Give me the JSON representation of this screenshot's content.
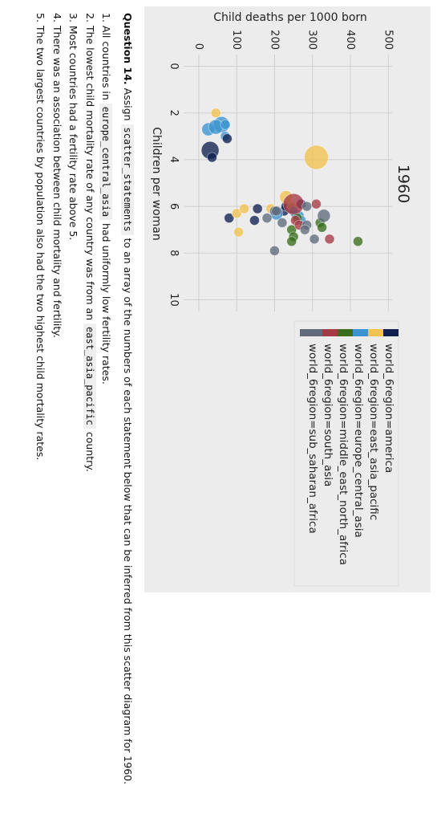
{
  "chart_data": {
    "type": "scatter",
    "title": "1960",
    "xlabel": "Children per woman",
    "ylabel": "Child deaths per 1000 born",
    "xlim": [
      -0.5,
      10.5
    ],
    "ylim": [
      -40,
      510
    ],
    "xticks": [
      0,
      2,
      4,
      6,
      8,
      10
    ],
    "yticks": [
      0,
      100,
      200,
      300,
      400,
      500
    ],
    "grid": true,
    "legend_position": "right",
    "series": [
      {
        "name": "world_6region=america",
        "color": "#0f2050",
        "points": [
          [
            6.1,
            155
          ],
          [
            6.5,
            80
          ],
          [
            6.6,
            147
          ],
          [
            6.2,
            225
          ],
          [
            6.0,
            230
          ],
          [
            6.3,
            255
          ],
          [
            6.1,
            245
          ],
          [
            5.9,
            270
          ]
        ]
      },
      {
        "name": "world_6region=east_asia_pacific",
        "color": "#f2c14e",
        "points": [
          [
            2.0,
            45
          ],
          [
            3.9,
            310
          ],
          [
            6.3,
            100
          ],
          [
            7.1,
            105
          ],
          [
            6.1,
            190
          ],
          [
            6.1,
            120
          ],
          [
            5.6,
            230
          ],
          [
            6.0,
            245
          ]
        ]
      },
      {
        "name": "world_6region=europe_central_asia",
        "color": "#3b94cf",
        "points": [
          [
            2.5,
            60
          ],
          [
            2.7,
            25
          ],
          [
            2.6,
            45
          ],
          [
            3.0,
            70
          ],
          [
            2.5,
            70
          ],
          [
            6.3,
            205
          ],
          [
            6.4,
            265
          ],
          [
            6.2,
            250
          ],
          [
            6.6,
            270
          ]
        ]
      },
      {
        "name": "world_6region=middle_east_north_africa",
        "color": "#3a6d1c",
        "points": [
          [
            6.7,
            320
          ],
          [
            6.9,
            325
          ],
          [
            7.5,
            420
          ],
          [
            7.0,
            245
          ],
          [
            7.3,
            250
          ],
          [
            7.5,
            245
          ],
          [
            6.5,
            260
          ]
        ]
      },
      {
        "name": "world_6region=south_asia",
        "color": "#a63a44",
        "points": [
          [
            5.9,
            250
          ],
          [
            6.6,
            255
          ],
          [
            5.9,
            310
          ],
          [
            6.8,
            265
          ],
          [
            7.4,
            345
          ]
        ]
      },
      {
        "name": "world_6region=sub_saharan_africa",
        "color": "#5f6a7b",
        "points": [
          [
            6.7,
            220
          ],
          [
            6.2,
            200
          ],
          [
            6.0,
            285
          ],
          [
            6.4,
            330
          ],
          [
            6.8,
            285
          ],
          [
            7.0,
            280
          ],
          [
            7.4,
            305
          ],
          [
            7.9,
            200
          ],
          [
            6.5,
            180
          ],
          [
            6.2,
            205
          ]
        ]
      },
      {
        "name": "world_6region=america",
        "color": "#0f2050",
        "points": [
          [
            3.6,
            30
          ],
          [
            3.9,
            35
          ],
          [
            3.1,
            75
          ]
        ]
      }
    ]
  },
  "question": {
    "label": "Question 14.",
    "text1": " Assign ",
    "code1": "scatter_statements",
    "text2": " to an array of the numbers of each statement below that can be inferred from this scatter diagram for 1960.",
    "s1a": "1. All countries in ",
    "s1code": "europe_central_asia",
    "s1b": " had uniformly low fertility rates.",
    "s2a": "2. The lowest child mortality rate of any country was from an ",
    "s2code": "east_asia_pacific",
    "s2b": " country.",
    "s3": "3. Most countries had a fertility rate above 5.",
    "s4": "4. There was an association between child mortality and fertility.",
    "s5": "5. The two largest countries by population also had the two highest child mortality rates."
  }
}
